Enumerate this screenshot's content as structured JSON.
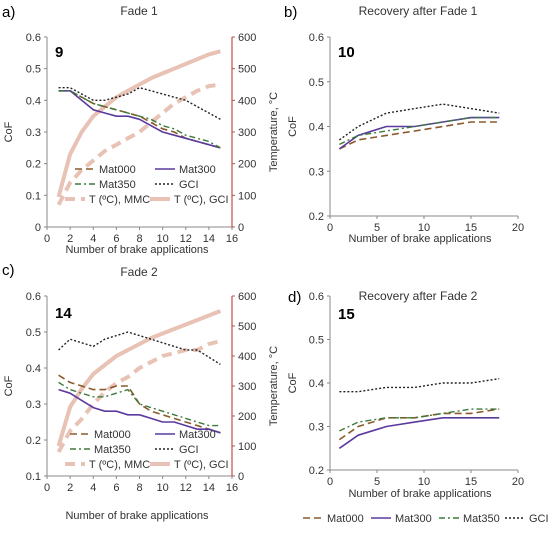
{
  "chart_data": [
    {
      "type": "line",
      "panel_label": "a)",
      "panel_number": "9",
      "title": "Fade 1",
      "xlabel": "Number of brake applications",
      "ylabel": "CoF",
      "y2label": "Temperature, °C",
      "xlim": [
        0,
        16
      ],
      "ylim": [
        0,
        0.6
      ],
      "y2lim": [
        0,
        600
      ],
      "xticks": [
        "0",
        "2",
        "4",
        "6",
        "8",
        "10",
        "12",
        "14",
        "16"
      ],
      "yticks": [
        "0",
        "0.1",
        "0.2",
        "0.3",
        "0.4",
        "0.5",
        "0.6"
      ],
      "y2ticks": [
        "0",
        "100",
        "200",
        "300",
        "400",
        "500",
        "600"
      ],
      "legend_position": "lower-center",
      "series": [
        {
          "name": "Mat000",
          "axis": "left",
          "x": [
            1,
            2,
            3,
            4,
            5,
            6,
            7,
            8,
            9,
            10,
            11,
            12,
            13,
            14,
            15
          ],
          "values": [
            0.43,
            0.43,
            0.41,
            0.39,
            0.38,
            0.37,
            0.36,
            0.35,
            0.33,
            0.31,
            0.3,
            0.28,
            0.27,
            0.26,
            0.25
          ]
        },
        {
          "name": "Mat300",
          "axis": "left",
          "x": [
            1,
            2,
            3,
            4,
            5,
            6,
            7,
            8,
            9,
            10,
            11,
            12,
            13,
            14,
            15
          ],
          "values": [
            0.43,
            0.43,
            0.4,
            0.37,
            0.36,
            0.35,
            0.35,
            0.34,
            0.32,
            0.3,
            0.29,
            0.28,
            0.27,
            0.26,
            0.25
          ]
        },
        {
          "name": "Mat350",
          "axis": "left",
          "x": [
            1,
            2,
            3,
            4,
            5,
            6,
            7,
            8,
            9,
            10,
            11,
            12,
            13,
            14,
            15
          ],
          "values": [
            0.43,
            0.43,
            0.41,
            0.39,
            0.38,
            0.37,
            0.36,
            0.35,
            0.34,
            0.32,
            0.31,
            0.29,
            0.28,
            0.27,
            0.25
          ]
        },
        {
          "name": "GCI",
          "axis": "left",
          "x": [
            1,
            2,
            3,
            4,
            5,
            6,
            7,
            8,
            9,
            10,
            11,
            12,
            13,
            14,
            15
          ],
          "values": [
            0.44,
            0.44,
            0.42,
            0.4,
            0.4,
            0.41,
            0.42,
            0.44,
            0.43,
            0.42,
            0.41,
            0.4,
            0.38,
            0.36,
            0.34
          ]
        },
        {
          "name": "T (ºC), MMC",
          "axis": "right",
          "x": [
            1,
            2,
            3,
            4,
            5,
            6,
            7,
            8,
            9,
            10,
            11,
            12,
            13,
            14,
            15
          ],
          "values": [
            70,
            140,
            180,
            210,
            240,
            260,
            280,
            300,
            330,
            360,
            390,
            410,
            430,
            445,
            450
          ]
        },
        {
          "name": "T (ºC), GCI",
          "axis": "right",
          "x": [
            1,
            2,
            3,
            4,
            5,
            6,
            7,
            8,
            9,
            10,
            11,
            12,
            13,
            14,
            15
          ],
          "values": [
            95,
            230,
            300,
            350,
            380,
            410,
            430,
            450,
            470,
            485,
            500,
            515,
            530,
            545,
            555
          ]
        }
      ]
    },
    {
      "type": "line",
      "panel_label": "b)",
      "panel_number": "10",
      "title": "Recovery after Fade 1",
      "xlabel": "Number of brake applications",
      "ylabel": "CoF",
      "xlim": [
        0,
        20
      ],
      "ylim": [
        0.2,
        0.6
      ],
      "xticks": [
        "0",
        "5",
        "10",
        "15",
        "20"
      ],
      "yticks": [
        "0.2",
        "0.3",
        "0.4",
        "0.5",
        "0.6"
      ],
      "series": [
        {
          "name": "Mat000",
          "x": [
            1,
            3,
            6,
            9,
            12,
            15,
            18
          ],
          "values": [
            0.35,
            0.37,
            0.38,
            0.39,
            0.4,
            0.41,
            0.41
          ]
        },
        {
          "name": "Mat300",
          "x": [
            1,
            3,
            6,
            9,
            12,
            15,
            18
          ],
          "values": [
            0.35,
            0.38,
            0.4,
            0.4,
            0.41,
            0.42,
            0.42
          ]
        },
        {
          "name": "Mat350",
          "x": [
            1,
            3,
            6,
            9,
            12,
            15,
            18
          ],
          "values": [
            0.36,
            0.38,
            0.39,
            0.4,
            0.41,
            0.42,
            0.42
          ]
        },
        {
          "name": "GCI",
          "x": [
            1,
            3,
            6,
            9,
            12,
            15,
            18
          ],
          "values": [
            0.37,
            0.4,
            0.43,
            0.44,
            0.45,
            0.44,
            0.43
          ]
        }
      ]
    },
    {
      "type": "line",
      "panel_label": "c)",
      "panel_number": "14",
      "title": "Fade 2",
      "xlabel": "Number of brake applications",
      "ylabel": "CoF",
      "y2label": "Temperature, °C",
      "xlim": [
        0,
        16
      ],
      "ylim": [
        0.1,
        0.6
      ],
      "y2lim": [
        0,
        600
      ],
      "xticks": [
        "0",
        "2",
        "4",
        "6",
        "8",
        "10",
        "12",
        "14",
        "16"
      ],
      "yticks": [
        "0.1",
        "0.2",
        "0.3",
        "0.4",
        "0.5",
        "0.6"
      ],
      "y2ticks": [
        "0",
        "100",
        "200",
        "300",
        "400",
        "500",
        "600"
      ],
      "legend_position": "lower-center",
      "series": [
        {
          "name": "Mat000",
          "axis": "left",
          "x": [
            1,
            2,
            3,
            4,
            5,
            6,
            7,
            8,
            9,
            10,
            11,
            12,
            13,
            14,
            15
          ],
          "values": [
            0.38,
            0.36,
            0.35,
            0.34,
            0.34,
            0.35,
            0.35,
            0.3,
            0.28,
            0.27,
            0.26,
            0.25,
            0.24,
            0.23,
            0.22
          ]
        },
        {
          "name": "Mat300",
          "axis": "left",
          "x": [
            1,
            2,
            3,
            4,
            5,
            6,
            7,
            8,
            9,
            10,
            11,
            12,
            13,
            14,
            15
          ],
          "values": [
            0.34,
            0.33,
            0.31,
            0.29,
            0.28,
            0.28,
            0.27,
            0.27,
            0.26,
            0.25,
            0.25,
            0.24,
            0.23,
            0.23,
            0.22
          ]
        },
        {
          "name": "Mat350",
          "axis": "left",
          "x": [
            1,
            2,
            3,
            4,
            5,
            6,
            7,
            8,
            9,
            10,
            11,
            12,
            13,
            14,
            15
          ],
          "values": [
            0.36,
            0.34,
            0.33,
            0.32,
            0.32,
            0.33,
            0.34,
            0.3,
            0.29,
            0.28,
            0.27,
            0.26,
            0.25,
            0.24,
            0.24
          ]
        },
        {
          "name": "GCI",
          "axis": "left",
          "x": [
            1,
            2,
            3,
            4,
            5,
            6,
            7,
            8,
            9,
            10,
            11,
            12,
            13,
            14,
            15
          ],
          "values": [
            0.45,
            0.48,
            0.47,
            0.46,
            0.48,
            0.49,
            0.5,
            0.49,
            0.48,
            0.47,
            0.46,
            0.45,
            0.45,
            0.43,
            0.41
          ]
        },
        {
          "name": "T (ºC), MMC",
          "axis": "right",
          "x": [
            1,
            2,
            3,
            4,
            5,
            6,
            7,
            8,
            9,
            10,
            11,
            12,
            13,
            14,
            15
          ],
          "values": [
            80,
            150,
            190,
            240,
            280,
            310,
            330,
            360,
            380,
            400,
            410,
            420,
            420,
            440,
            450
          ]
        },
        {
          "name": "T (ºC), GCI",
          "axis": "right",
          "x": [
            1,
            2,
            3,
            4,
            5,
            6,
            7,
            8,
            9,
            10,
            11,
            12,
            13,
            14,
            15
          ],
          "values": [
            100,
            230,
            290,
            340,
            370,
            400,
            420,
            440,
            460,
            475,
            490,
            505,
            520,
            535,
            550
          ]
        }
      ]
    },
    {
      "type": "line",
      "panel_label": "d)",
      "panel_number": "15",
      "title": "Recovery after Fade 2",
      "xlabel": "Number of brake applications",
      "ylabel": "CoF",
      "xlim": [
        0,
        20
      ],
      "ylim": [
        0.2,
        0.6
      ],
      "xticks": [
        "0",
        "5",
        "10",
        "15",
        "20"
      ],
      "yticks": [
        "0.2",
        "0.3",
        "0.4",
        "0.5",
        "0.6"
      ],
      "legend_position": "bottom",
      "series": [
        {
          "name": "Mat000",
          "x": [
            1,
            3,
            6,
            9,
            12,
            15,
            18
          ],
          "values": [
            0.27,
            0.3,
            0.32,
            0.32,
            0.33,
            0.33,
            0.34
          ]
        },
        {
          "name": "Mat300",
          "x": [
            1,
            3,
            6,
            9,
            12,
            15,
            18
          ],
          "values": [
            0.25,
            0.28,
            0.3,
            0.31,
            0.32,
            0.32,
            0.32
          ]
        },
        {
          "name": "Mat350",
          "x": [
            1,
            3,
            6,
            9,
            12,
            15,
            18
          ],
          "values": [
            0.29,
            0.31,
            0.32,
            0.32,
            0.33,
            0.34,
            0.34
          ]
        },
        {
          "name": "GCI",
          "x": [
            1,
            3,
            6,
            9,
            12,
            15,
            18
          ],
          "values": [
            0.38,
            0.38,
            0.39,
            0.39,
            0.4,
            0.4,
            0.41
          ]
        }
      ]
    }
  ],
  "styles": {
    "Mat000": {
      "color": "#8B5A2B",
      "dash": "7,4",
      "width": 1.6
    },
    "Mat300": {
      "color": "#5B3A9E",
      "dash": "",
      "width": 1.6
    },
    "Mat350": {
      "color": "#3D7A3D",
      "dash": "6,3,2,3",
      "width": 1.4
    },
    "GCI": {
      "color": "#222222",
      "dash": "2,2",
      "width": 1.4
    },
    "T (ºC), MMC": {
      "color": "#E8C2B4",
      "dash": "10,6",
      "width": 4
    },
    "T (ºC), GCI": {
      "color": "#E8C2B4",
      "dash": "",
      "width": 4
    }
  },
  "temperature_axis_color": "#C0504D"
}
